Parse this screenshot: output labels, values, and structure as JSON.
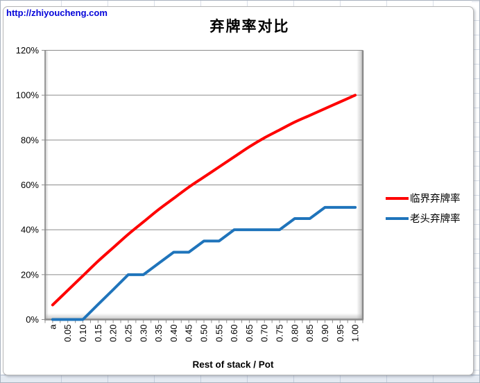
{
  "watermark": {
    "text": "http://zhiyoucheng.com",
    "color": "#0303d9"
  },
  "chart_data": {
    "type": "line",
    "title": "弃牌率对比",
    "xlabel": "Rest of stack / Pot",
    "ylabel": "",
    "grid": true,
    "legend_position": "right",
    "y_axis": {
      "min": 0,
      "max": 120,
      "step": 20,
      "tick_labels": [
        "0%",
        "20%",
        "40%",
        "60%",
        "80%",
        "100%",
        "120%"
      ]
    },
    "categories": [
      "a",
      "0.05",
      "0.10",
      "0.15",
      "0.20",
      "0.25",
      "0.30",
      "0.35",
      "0.40",
      "0.45",
      "0.50",
      "0.55",
      "0.60",
      "0.65",
      "0.70",
      "0.75",
      "0.80",
      "0.85",
      "0.90",
      "0.95",
      "1.00"
    ],
    "series": [
      {
        "name": "临界弃牌率",
        "color": "#fe0000",
        "smooth": true,
        "values": [
          6.5,
          13,
          19.5,
          26,
          32,
          38,
          43.5,
          49,
          54,
          59,
          63.5,
          68,
          72.5,
          77,
          81,
          84.5,
          88,
          91,
          94,
          97,
          100
        ]
      },
      {
        "name": "老头弃牌率",
        "color": "#1f74bb",
        "smooth": false,
        "values": [
          0,
          0,
          0,
          6.7,
          13.3,
          20,
          20,
          25,
          30,
          30,
          35,
          35,
          40,
          40,
          40,
          40,
          45,
          45,
          50,
          50,
          50
        ]
      }
    ]
  }
}
